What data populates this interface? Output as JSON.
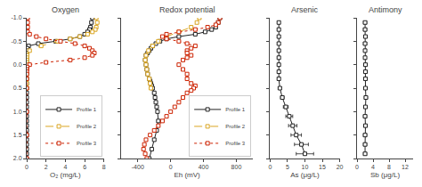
{
  "chart_data": [
    {
      "type": "line",
      "title": "Oxygen",
      "x_label": "O₂ (mg/L)",
      "xlim": [
        0,
        8
      ],
      "xticks": [
        0,
        2,
        4,
        6,
        8
      ],
      "ylim": [
        2.0,
        -1.0
      ],
      "yticks": [
        {
          "value": -1.0,
          "label": "-1.0"
        },
        -0.5,
        {
          "value": 0.0,
          "label": "0.0"
        },
        0.5,
        {
          "value": 1.0,
          "label": "1.0"
        },
        1.5,
        {
          "value": 2.0,
          "label": "2.0"
        }
      ],
      "grid": false,
      "legend": "lower right",
      "series": [
        {
          "name": "Profile 1",
          "color": "#222222",
          "marker": "square",
          "line_style": "solid",
          "x": [
            6.8,
            6.7,
            6.6,
            6.5,
            6.3,
            6.0,
            5.5,
            4.5,
            3.0,
            1.2,
            0.2,
            0.05,
            0.01,
            0.01,
            0.01,
            0.01,
            0.01,
            0.0,
            0.0,
            0.0,
            0.0,
            0.0,
            0.0,
            0.0,
            0.0,
            0.0,
            0.0,
            0.0,
            0.0,
            0.0,
            0.0,
            0.0,
            0.0,
            0.0,
            0.0,
            0.0,
            0.0,
            0.0,
            0.0
          ],
          "y": [
            -1.0,
            -0.9,
            -0.8,
            -0.75,
            -0.7,
            -0.65,
            -0.6,
            -0.55,
            -0.5,
            -0.45,
            -0.4,
            -0.35,
            -0.3,
            -0.25,
            -0.2,
            -0.15,
            -0.1,
            -0.05,
            0.0,
            0.1,
            0.2,
            0.3,
            0.4,
            0.5,
            0.6,
            0.7,
            0.8,
            0.9,
            1.0,
            1.1,
            1.2,
            1.3,
            1.4,
            1.5,
            1.6,
            1.7,
            1.8,
            1.9,
            2.0
          ]
        },
        {
          "name": "Profile 2",
          "color": "#DAA520",
          "marker": "square",
          "line_style": "dashed",
          "x": [
            7.2,
            7.3,
            7.2,
            7.1,
            6.8,
            6.3,
            5.5,
            4.5,
            3.2,
            1.5,
            0.3,
            0.05,
            0.02,
            0.01,
            0.01,
            0.0,
            0.0,
            0.0,
            0.0,
            0.0,
            0.0
          ],
          "y": [
            -1.0,
            -0.9,
            -0.8,
            -0.75,
            -0.7,
            -0.65,
            -0.6,
            -0.55,
            -0.5,
            -0.4,
            -0.3,
            -0.2,
            -0.15,
            -0.1,
            -0.05,
            0.0,
            0.1,
            0.2,
            0.3,
            0.4,
            0.5
          ]
        },
        {
          "name": "Profile 3",
          "color": "#CC2200",
          "marker": "square",
          "line_style": "dotted",
          "x": [
            0.1,
            0.1,
            0.1,
            0.1,
            0.3,
            1.0,
            2.0,
            3.5,
            5.0,
            6.0,
            6.5,
            6.8,
            7.0,
            6.8,
            6.0,
            4.5,
            2.0,
            0.3,
            0.05,
            0.01,
            0.01,
            0.01,
            0.0,
            0.0,
            0.0,
            0.0,
            0.0
          ],
          "y": [
            -1.0,
            -0.9,
            -0.8,
            -0.7,
            -0.65,
            -0.6,
            -0.55,
            -0.5,
            -0.45,
            -0.4,
            -0.35,
            -0.3,
            -0.25,
            -0.2,
            -0.15,
            -0.1,
            -0.05,
            0.0,
            0.05,
            0.1,
            0.15,
            0.2,
            0.3,
            0.5,
            1.0,
            1.5,
            2.0
          ]
        }
      ]
    },
    {
      "type": "line",
      "title": "Redox potential",
      "x_label": "Eh (mV)",
      "xlim": [
        -600,
        1000
      ],
      "xticks": [
        -400,
        0,
        400,
        800
      ],
      "ylim": [
        2.0,
        -1.0
      ],
      "yticks": [
        -1.0,
        -0.5,
        0.0,
        0.5,
        1.0,
        1.5,
        2.0
      ],
      "tick_labels": "x",
      "grid": false,
      "legend": "lower right",
      "series": [
        {
          "name": "Profile 1",
          "color": "#222222",
          "marker": "square",
          "line_style": "solid",
          "x": [
            600,
            580,
            550,
            500,
            420,
            300,
            100,
            -50,
            -130,
            -180,
            -220,
            -240,
            -260,
            -280,
            -300,
            -310,
            -300,
            -290,
            -280,
            -260,
            -250,
            -240,
            -230,
            -220,
            -200,
            -190,
            -180,
            -170,
            -160,
            -150,
            -170,
            -200,
            -230,
            -260
          ],
          "y": [
            -1.0,
            -0.9,
            -0.8,
            -0.75,
            -0.7,
            -0.65,
            -0.6,
            -0.55,
            -0.5,
            -0.45,
            -0.4,
            -0.35,
            -0.3,
            -0.25,
            -0.2,
            -0.1,
            0.0,
            0.1,
            0.2,
            0.3,
            0.35,
            0.4,
            0.45,
            0.5,
            0.6,
            0.7,
            0.8,
            0.9,
            1.0,
            1.2,
            1.4,
            1.6,
            1.8,
            2.0
          ]
        },
        {
          "name": "Profile 2",
          "color": "#DAA520",
          "marker": "square",
          "line_style": "dashed",
          "x": [
            350,
            320,
            250,
            100,
            -50,
            -150,
            -220,
            -270,
            -300,
            -310,
            -300,
            -290,
            -280,
            -260,
            -250,
            -240
          ],
          "y": [
            -1.0,
            -0.9,
            -0.8,
            -0.7,
            -0.6,
            -0.5,
            -0.4,
            -0.3,
            -0.2,
            -0.1,
            0.0,
            0.1,
            0.2,
            0.3,
            0.4,
            0.5
          ]
        },
        {
          "name": "Profile 3",
          "color": "#CC2200",
          "marker": "square",
          "line_style": "dotted",
          "x": [
            600,
            580,
            550,
            450,
            300,
            100,
            -50,
            -100,
            -50,
            100,
            200,
            300,
            250,
            200,
            200,
            250,
            200,
            150,
            100,
            150,
            200,
            200,
            250,
            300,
            280,
            250,
            200,
            150,
            100,
            50,
            0,
            -50,
            -100,
            -150,
            -200,
            -250,
            -300,
            -320,
            -330,
            -310,
            -290
          ],
          "y": [
            -1.0,
            -0.9,
            -0.85,
            -0.8,
            -0.75,
            -0.7,
            -0.65,
            -0.6,
            -0.55,
            -0.5,
            -0.45,
            -0.4,
            -0.35,
            -0.3,
            -0.25,
            -0.2,
            -0.15,
            -0.1,
            0.0,
            0.1,
            0.2,
            0.3,
            0.4,
            0.45,
            0.5,
            0.55,
            0.6,
            0.7,
            0.8,
            0.9,
            1.0,
            1.1,
            1.2,
            1.3,
            1.4,
            1.5,
            1.6,
            1.7,
            1.8,
            1.9,
            2.0
          ]
        }
      ]
    },
    {
      "type": "line",
      "title": "Arsenic",
      "x_label": "As (μg/L)",
      "xlim": [
        0,
        20
      ],
      "xticks": [
        0,
        5,
        10,
        15,
        20
      ],
      "ylim": [
        2.0,
        -1.0
      ],
      "yticks": [
        -1.0,
        -0.5,
        0.0,
        0.5,
        1.0,
        1.5,
        2.0
      ],
      "tick_labels": "x",
      "grid": false,
      "series": [
        {
          "color": "#222222",
          "marker": "square",
          "line_style": "solid",
          "x": [
            2.5,
            2.5,
            2.5,
            2.5,
            2.5,
            2.5,
            2.5,
            2.5,
            2.5,
            2.8,
            3.5,
            4.5,
            5.5,
            6.5,
            7.5,
            9.0,
            10.0
          ],
          "y": [
            -0.9,
            -0.75,
            -0.6,
            -0.45,
            -0.3,
            -0.15,
            0.0,
            0.15,
            0.3,
            0.5,
            0.7,
            0.9,
            1.1,
            1.3,
            1.5,
            1.7,
            1.9
          ],
          "xerr_lo": [
            0.3,
            0.3,
            0.3,
            0.3,
            0.3,
            0.3,
            0.3,
            0.3,
            0.3,
            0.4,
            0.5,
            0.7,
            1.0,
            1.2,
            1.5,
            2.0,
            2.5
          ],
          "xerr_hi": [
            0.3,
            0.3,
            0.3,
            0.3,
            0.3,
            0.3,
            0.3,
            0.3,
            0.3,
            0.4,
            0.5,
            0.7,
            1.0,
            1.2,
            1.5,
            2.0,
            2.5
          ]
        }
      ]
    },
    {
      "type": "line",
      "title": "Antimony",
      "x_label": "Sb (μg/L)",
      "xlim": [
        0,
        14
      ],
      "xticks": [
        0,
        4,
        8,
        12
      ],
      "ylim": [
        2.0,
        -1.0
      ],
      "yticks": [
        -1.0,
        -0.5,
        0.0,
        0.5,
        1.0,
        1.5,
        2.0
      ],
      "tick_labels": "x",
      "grid": false,
      "series": [
        {
          "color": "#222222",
          "marker": "square",
          "line_style": "solid",
          "x": [
            2.0,
            2.0,
            2.1,
            2.0,
            2.0,
            2.0,
            2.1,
            2.1,
            2.1,
            2.1,
            2.2,
            2.1,
            2.0,
            2.1,
            2.0,
            2.0,
            2.0
          ],
          "y": [
            -0.9,
            -0.75,
            -0.6,
            -0.45,
            -0.3,
            -0.15,
            0.0,
            0.15,
            0.3,
            0.5,
            0.7,
            0.9,
            1.1,
            1.3,
            1.5,
            1.7,
            1.9
          ],
          "xerr_lo": [
            0.4,
            0.4,
            0.4,
            0.4,
            0.3,
            0.3,
            0.4,
            0.4,
            0.4,
            0.4,
            0.4,
            0.4,
            0.4,
            0.4,
            0.4,
            0.4,
            0.4
          ],
          "xerr_hi": [
            0.4,
            0.4,
            0.4,
            0.4,
            0.3,
            0.3,
            0.4,
            0.4,
            0.4,
            0.4,
            0.4,
            0.4,
            0.4,
            0.4,
            0.4,
            0.4,
            0.4
          ]
        }
      ]
    }
  ]
}
